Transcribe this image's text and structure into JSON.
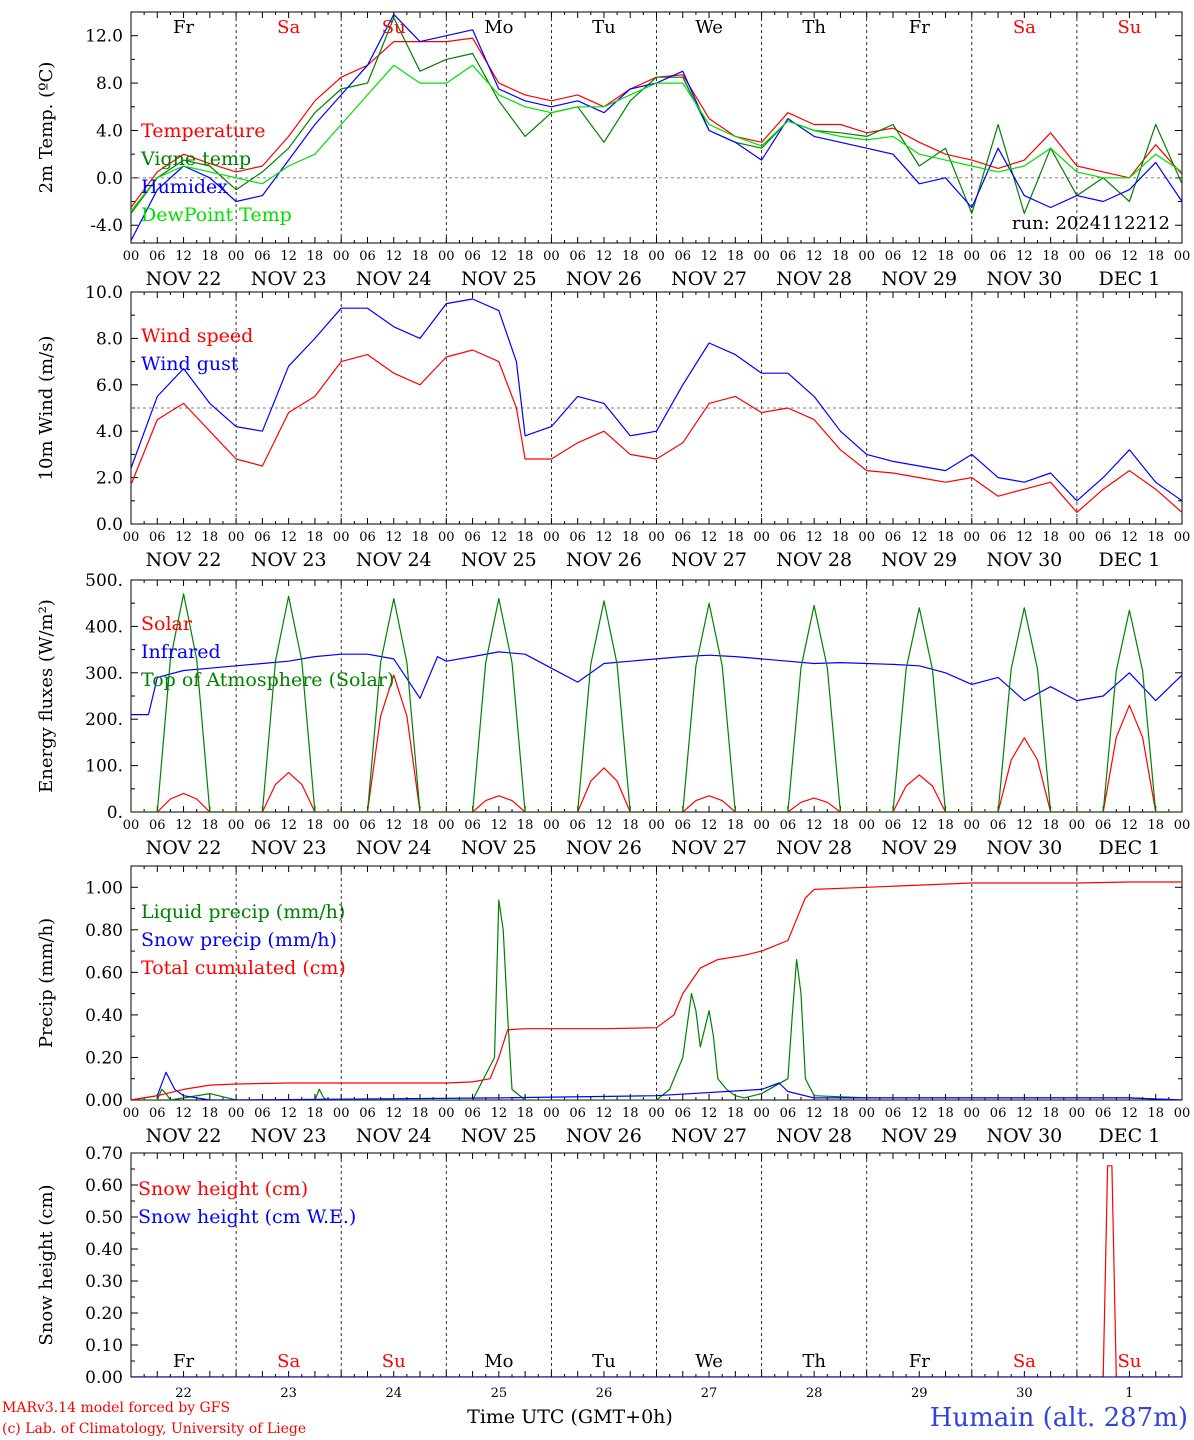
{
  "run_label": "run: 2024112212",
  "x_label": "Time UTC (GMT+0h)",
  "credit_line1": "MARv3.14 model forced by GFS",
  "credit_line2": "(c) Lab. of Climatology, University of Liege",
  "station": "Humain (alt. 287m)",
  "colors": {
    "red": "#ff0000",
    "green": "#008000",
    "blue": "#0000ff",
    "lightgreen": "#00e000",
    "weekend": "#ff0000"
  },
  "days": [
    {
      "dow": "Fr",
      "date": "NOV 22",
      "num": "22",
      "weekend": false
    },
    {
      "dow": "Sa",
      "date": "NOV 23",
      "num": "23",
      "weekend": true
    },
    {
      "dow": "Su",
      "date": "NOV 24",
      "num": "24",
      "weekend": true
    },
    {
      "dow": "Mo",
      "date": "NOV 25",
      "num": "25",
      "weekend": false
    },
    {
      "dow": "Tu",
      "date": "NOV 26",
      "num": "26",
      "weekend": false
    },
    {
      "dow": "We",
      "date": "NOV 27",
      "num": "27",
      "weekend": false
    },
    {
      "dow": "Th",
      "date": "NOV 28",
      "num": "28",
      "weekend": false
    },
    {
      "dow": "Fr",
      "date": "NOV 29",
      "num": "29",
      "weekend": false
    },
    {
      "dow": "Sa",
      "date": "NOV 30",
      "num": "30",
      "weekend": true
    },
    {
      "dow": "Su",
      "date": "DEC  1",
      "num": "1",
      "weekend": true
    }
  ],
  "hour_ticks": [
    "00",
    "06",
    "12",
    "18"
  ],
  "chart_data": [
    {
      "type": "line",
      "ylabel": "2m Temp. (ºC)",
      "ylim": [
        -5.5,
        14
      ],
      "yticks": [
        -4,
        0,
        4,
        8,
        12
      ],
      "ytick_labels": [
        "-4.0",
        "0.0",
        "4.0",
        "8.0",
        "12.0"
      ],
      "hline": 0,
      "x_unit": "hours since Nov 22 00 UTC",
      "series": [
        {
          "name": "Temperature",
          "color": "red",
          "x": [
            0,
            6,
            12,
            18,
            24,
            30,
            36,
            42,
            48,
            54,
            60,
            66,
            72,
            78,
            84,
            90,
            96,
            102,
            108,
            114,
            120,
            126,
            132,
            138,
            144,
            150,
            156,
            162,
            168,
            174,
            180,
            186,
            192,
            198,
            204,
            210,
            216,
            222,
            228,
            234,
            240
          ],
          "y": [
            -2.5,
            0.5,
            2,
            1.2,
            0.5,
            1,
            3.5,
            6.5,
            8.5,
            9.5,
            11.5,
            11.5,
            11.5,
            11.8,
            8,
            7,
            6.5,
            7,
            6,
            7.5,
            8.5,
            8.7,
            5,
            3.5,
            3,
            5.5,
            4.5,
            4.5,
            3.8,
            4.2,
            3,
            2,
            1.5,
            0.8,
            1.5,
            3.8,
            1,
            0.5,
            0,
            2.8,
            0.3
          ]
        },
        {
          "name": "Vigne temp",
          "color": "green",
          "x": [
            0,
            6,
            12,
            18,
            24,
            30,
            36,
            42,
            48,
            54,
            60,
            66,
            72,
            78,
            84,
            90,
            96,
            102,
            108,
            114,
            120,
            126,
            132,
            138,
            144,
            150,
            156,
            162,
            168,
            174,
            180,
            186,
            192,
            198,
            204,
            210,
            216,
            222,
            228,
            234,
            240
          ],
          "y": [
            -3,
            0,
            1.5,
            1,
            -1,
            0.5,
            2.5,
            5.5,
            7.5,
            8,
            13.5,
            9,
            10,
            10.5,
            6.5,
            3.5,
            5.5,
            6,
            3,
            6.5,
            8.5,
            8.5,
            4,
            3,
            2.5,
            4.8,
            4,
            3.8,
            3.5,
            4.5,
            1,
            2.5,
            -3,
            4.5,
            -3,
            2.5,
            -1.5,
            0,
            -2,
            4.5,
            -0.5
          ]
        },
        {
          "name": "Humidex",
          "color": "blue",
          "x": [
            0,
            6,
            12,
            18,
            24,
            30,
            36,
            42,
            48,
            54,
            60,
            66,
            72,
            78,
            84,
            90,
            96,
            102,
            108,
            114,
            120,
            126,
            132,
            138,
            144,
            150,
            156,
            162,
            168,
            174,
            180,
            186,
            192,
            198,
            204,
            210,
            216,
            222,
            228,
            234,
            240
          ],
          "y": [
            -5.3,
            -1,
            1,
            0,
            -2,
            -1.5,
            1.5,
            4.5,
            7,
            9.5,
            13.8,
            11.5,
            12,
            12.5,
            7.5,
            6.5,
            6,
            6.5,
            5.5,
            7.5,
            8,
            9,
            4,
            3,
            1.5,
            5,
            3.5,
            3,
            2.5,
            2,
            -0.5,
            0,
            -2.5,
            2.5,
            -1.5,
            -2.5,
            -1.5,
            -2,
            -1,
            1.3,
            -2
          ]
        },
        {
          "name": "DewPoint Temp",
          "color": "lightgreen",
          "x": [
            0,
            6,
            12,
            18,
            24,
            30,
            36,
            42,
            48,
            54,
            60,
            66,
            72,
            78,
            84,
            90,
            96,
            102,
            108,
            114,
            120,
            126,
            132,
            138,
            144,
            150,
            156,
            162,
            168,
            174,
            180,
            186,
            192,
            198,
            204,
            210,
            216,
            222,
            228,
            234,
            240
          ],
          "y": [
            -2.8,
            0,
            1,
            0.5,
            0,
            -0.5,
            1,
            2,
            4.5,
            7,
            9.5,
            8,
            8,
            9.5,
            7,
            6,
            5.5,
            6,
            6,
            7,
            8,
            8,
            4.5,
            3.5,
            2.7,
            4.8,
            4,
            3.5,
            3.2,
            3.5,
            2,
            1.5,
            1,
            0.5,
            1,
            2.5,
            0.5,
            0,
            0,
            2,
            0.5
          ]
        }
      ]
    },
    {
      "type": "line",
      "ylabel": "10m Wind (m/s)",
      "ylim": [
        0,
        10
      ],
      "yticks": [
        0,
        2,
        4,
        6,
        8,
        10
      ],
      "ytick_labels": [
        "0.0",
        "2.0",
        "4.0",
        "6.0",
        "8.0",
        "10.0"
      ],
      "hline": 5,
      "series": [
        {
          "name": "Wind speed",
          "color": "red",
          "x": [
            0,
            6,
            12,
            18,
            24,
            30,
            36,
            42,
            48,
            54,
            60,
            66,
            72,
            78,
            84,
            88,
            90,
            96,
            102,
            108,
            114,
            120,
            126,
            132,
            138,
            144,
            150,
            156,
            162,
            168,
            174,
            180,
            186,
            192,
            198,
            204,
            210,
            216,
            222,
            228,
            234,
            240
          ],
          "y": [
            1.7,
            4.5,
            5.2,
            4,
            2.8,
            2.5,
            4.8,
            5.5,
            7,
            7.3,
            6.5,
            6,
            7.2,
            7.5,
            7,
            5,
            2.8,
            2.8,
            3.5,
            4,
            3,
            2.8,
            3.5,
            5.2,
            5.5,
            4.8,
            5,
            4.5,
            3.2,
            2.3,
            2.2,
            2,
            1.8,
            2,
            1.2,
            1.5,
            1.8,
            0.5,
            1.5,
            2.3,
            1.5,
            0.5
          ]
        },
        {
          "name": "Wind gust",
          "color": "blue",
          "x": [
            0,
            6,
            12,
            18,
            24,
            30,
            36,
            42,
            48,
            54,
            60,
            66,
            72,
            78,
            84,
            88,
            90,
            96,
            102,
            108,
            114,
            120,
            126,
            132,
            138,
            144,
            150,
            156,
            162,
            168,
            174,
            180,
            186,
            192,
            198,
            204,
            210,
            216,
            222,
            228,
            234,
            240
          ],
          "y": [
            2.4,
            5.5,
            6.7,
            5.2,
            4.2,
            4,
            6.8,
            8,
            9.3,
            9.3,
            8.5,
            8,
            9.5,
            9.7,
            9.2,
            7,
            3.8,
            4.2,
            5.5,
            5.2,
            3.8,
            4,
            6,
            7.8,
            7.3,
            6.5,
            6.5,
            5.5,
            4,
            3,
            2.7,
            2.5,
            2.3,
            3,
            2,
            1.8,
            2.2,
            1,
            2,
            3.2,
            1.8,
            1
          ]
        }
      ]
    },
    {
      "type": "line",
      "ylabel": "Energy fluxes (W/m²)",
      "ylim": [
        0,
        500
      ],
      "yticks": [
        0,
        100,
        200,
        300,
        400,
        500
      ],
      "ytick_labels": [
        "0.",
        "100.",
        "200.",
        "300.",
        "400.",
        "500."
      ],
      "series": [
        {
          "name": "Solar",
          "color": "red",
          "peaks": [
            [
              12,
              40
            ],
            [
              36,
              85
            ],
            [
              60,
              295
            ],
            [
              84,
              35
            ],
            [
              108,
              95
            ],
            [
              132,
              35
            ],
            [
              156,
              30
            ],
            [
              180,
              80
            ],
            [
              204,
              160
            ],
            [
              228,
              230
            ]
          ]
        },
        {
          "name": "Infrared",
          "color": "blue",
          "x": [
            0,
            4,
            6,
            12,
            18,
            24,
            30,
            36,
            42,
            48,
            54,
            60,
            66,
            70,
            72,
            78,
            84,
            90,
            96,
            102,
            108,
            114,
            120,
            126,
            132,
            138,
            144,
            150,
            156,
            162,
            168,
            174,
            180,
            186,
            192,
            198,
            204,
            210,
            216,
            222,
            228,
            234,
            240
          ],
          "y": [
            210,
            210,
            290,
            305,
            310,
            315,
            320,
            325,
            335,
            340,
            340,
            330,
            245,
            335,
            325,
            335,
            345,
            340,
            310,
            280,
            320,
            325,
            330,
            335,
            338,
            335,
            330,
            325,
            320,
            322,
            320,
            318,
            315,
            300,
            275,
            290,
            240,
            270,
            240,
            250,
            300,
            240,
            295
          ]
        },
        {
          "name": "Top of Atmosphere (Solar)",
          "color": "green",
          "peaks": [
            [
              12,
              470
            ],
            [
              36,
              465
            ],
            [
              60,
              460
            ],
            [
              84,
              460
            ],
            [
              108,
              455
            ],
            [
              132,
              450
            ],
            [
              156,
              445
            ],
            [
              180,
              440
            ],
            [
              204,
              440
            ],
            [
              228,
              435
            ]
          ]
        }
      ]
    },
    {
      "type": "line",
      "ylabel": "Precip (mm/h)",
      "ylim": [
        0,
        1.1
      ],
      "yticks": [
        0,
        0.2,
        0.4,
        0.6,
        0.8,
        1.0
      ],
      "ytick_labels": [
        "0.00",
        "0.20",
        "0.40",
        "0.60",
        "0.80",
        "1.00"
      ],
      "series": [
        {
          "name": "Liquid precip (mm/h)",
          "color": "green",
          "x": [
            0,
            6,
            7,
            8,
            9,
            12,
            18,
            24,
            36,
            42,
            43,
            44,
            45,
            60,
            78,
            83,
            84,
            85,
            86,
            87,
            90,
            96,
            120,
            123,
            126,
            128,
            129,
            130,
            132,
            133,
            134,
            136,
            138,
            140,
            144,
            150,
            151,
            152,
            153,
            154,
            156,
            168,
            204,
            228,
            240
          ],
          "y": [
            0,
            0,
            0.05,
            0.03,
            0,
            0.01,
            0.03,
            0,
            0,
            0,
            0.05,
            0.01,
            0,
            0,
            0,
            0.2,
            0.94,
            0.8,
            0.4,
            0.05,
            0,
            0,
            0,
            0.05,
            0.2,
            0.5,
            0.42,
            0.25,
            0.42,
            0.3,
            0.1,
            0.05,
            0.02,
            0.01,
            0.03,
            0.1,
            0.4,
            0.66,
            0.5,
            0.1,
            0.02,
            0.01,
            0.01,
            0.01,
            0
          ]
        },
        {
          "name": "Snow precip (mm/h)",
          "color": "blue",
          "x": [
            0,
            6,
            8,
            10,
            12,
            18,
            24,
            84,
            120,
            144,
            148,
            150,
            156,
            168,
            204,
            228,
            240
          ],
          "y": [
            0,
            0.02,
            0.13,
            0.05,
            0.02,
            0,
            0,
            0.01,
            0.02,
            0.05,
            0.08,
            0.04,
            0.01,
            0.01,
            0.01,
            0.01,
            0
          ]
        },
        {
          "name": "Total cumulated (cm)",
          "color": "red",
          "x": [
            0,
            6,
            12,
            18,
            24,
            36,
            48,
            60,
            72,
            78,
            82,
            84,
            86,
            90,
            96,
            108,
            120,
            124,
            126,
            130,
            134,
            140,
            144,
            150,
            152,
            154,
            156,
            168,
            180,
            192,
            204,
            216,
            228,
            240
          ],
          "y": [
            0,
            0.02,
            0.05,
            0.07,
            0.075,
            0.08,
            0.08,
            0.08,
            0.08,
            0.085,
            0.1,
            0.2,
            0.33,
            0.335,
            0.335,
            0.335,
            0.34,
            0.4,
            0.5,
            0.62,
            0.66,
            0.68,
            0.7,
            0.75,
            0.85,
            0.95,
            0.99,
            1.0,
            1.01,
            1.02,
            1.02,
            1.02,
            1.025,
            1.025
          ]
        }
      ]
    },
    {
      "type": "line",
      "ylabel": "Snow height (cm)",
      "ylim": [
        0,
        0.7
      ],
      "yticks": [
        0,
        0.1,
        0.2,
        0.3,
        0.4,
        0.5,
        0.6,
        0.7
      ],
      "ytick_labels": [
        "0.00",
        "0.10",
        "0.20",
        "0.30",
        "0.40",
        "0.50",
        "0.60",
        "0.70"
      ],
      "series": [
        {
          "name": "Snow height (cm)",
          "color": "red",
          "x": [
            0,
            222,
            223,
            224,
            225,
            240
          ],
          "y": [
            0,
            0,
            0.66,
            0.66,
            0,
            0
          ]
        },
        {
          "name": "Snow height (cm W.E.)",
          "color": "blue",
          "x": [
            0,
            240
          ],
          "y": [
            0,
            0
          ]
        }
      ]
    }
  ]
}
